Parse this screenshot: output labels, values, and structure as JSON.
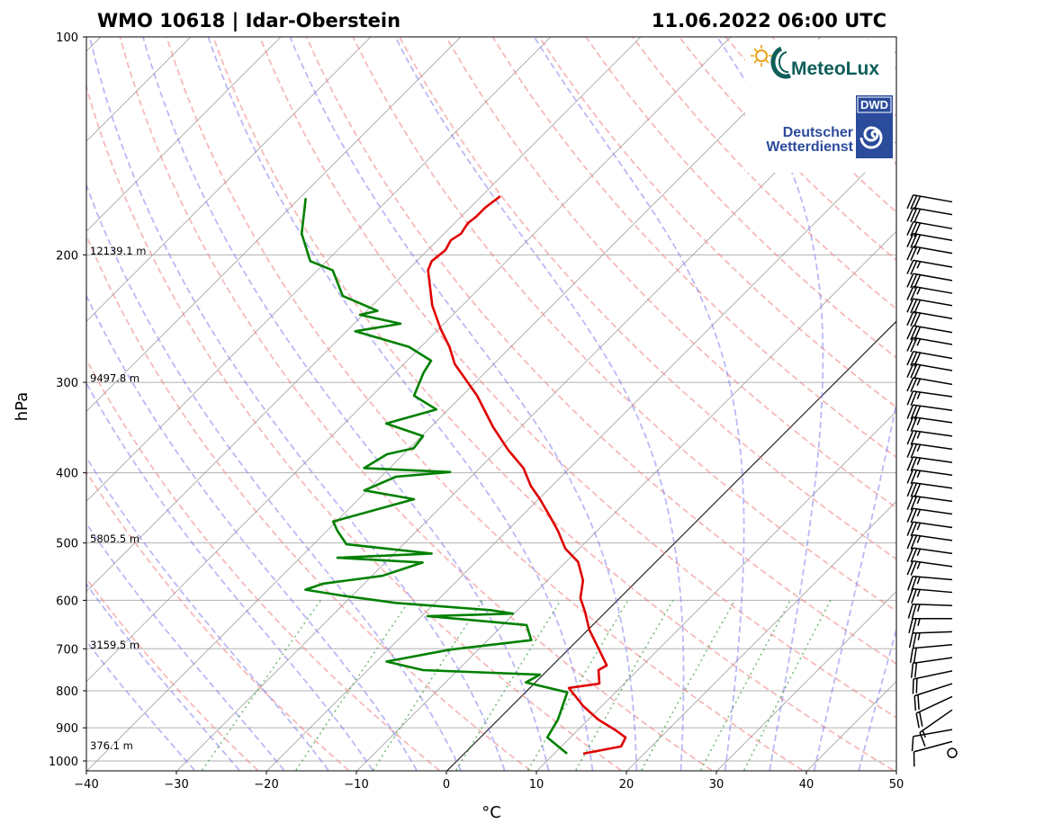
{
  "chart_data": {
    "type": "line",
    "subtype": "skew-t log-p",
    "title_left": "WMO 10618 | Idar-Oberstein",
    "title_right": "11.06.2022 06:00 UTC",
    "xlabel": "°C",
    "ylabel": "hPa",
    "xlim": [
      -40,
      50
    ],
    "ylim": [
      1030,
      100
    ],
    "xticks": [
      -40,
      -30,
      -20,
      -10,
      0,
      10,
      20,
      30,
      40,
      50
    ],
    "xtick_labels": [
      "−40",
      "−30",
      "−20",
      "−10",
      "0",
      "10",
      "20",
      "30",
      "40",
      "50"
    ],
    "yticks": [
      100,
      200,
      300,
      400,
      500,
      600,
      700,
      800,
      900,
      1000
    ],
    "ytick_labels": [
      "100",
      "200",
      "300",
      "400",
      "500",
      "600",
      "700",
      "800",
      "900",
      "1000"
    ],
    "grid": true,
    "height_labels": [
      {
        "p": 200,
        "text": "12139.1 m"
      },
      {
        "p": 300,
        "text": "9497.8 m"
      },
      {
        "p": 500,
        "text": "5805.5 m"
      },
      {
        "p": 700,
        "text": "3159.5 m"
      },
      {
        "p": 965,
        "text": "376.1 m"
      }
    ],
    "series": [
      {
        "name": "temperature",
        "color": "#e00000",
        "p": [
          977,
          955,
          928,
          907,
          877,
          840,
          793,
          782,
          749,
          738,
          698,
          659,
          622,
          596,
          563,
          531,
          509,
          481,
          461,
          435,
          417,
          394,
          372,
          346,
          313,
          283,
          268,
          253,
          235,
          210,
          204,
          197,
          191,
          187,
          181,
          177,
          172,
          166
        ],
        "t": [
          13.3,
          16.7,
          16.2,
          14.3,
          11.2,
          8.0,
          4.4,
          7.3,
          5.7,
          6.1,
          3.2,
          0.2,
          -2.3,
          -4.3,
          -6.0,
          -8.6,
          -11.5,
          -14.3,
          -16.6,
          -19.8,
          -22.3,
          -25.1,
          -28.8,
          -33.0,
          -38.3,
          -44.3,
          -46.8,
          -49.8,
          -53.3,
          -57.7,
          -58.3,
          -58.0,
          -58.5,
          -58.1,
          -58.5,
          -58.3,
          -58.3,
          -57.9
        ]
      },
      {
        "name": "dewpoint",
        "color": "#008000",
        "p": [
          977,
          928,
          877,
          804,
          779,
          760,
          749,
          729,
          702,
          681,
          649,
          631,
          626,
          619,
          605,
          591,
          580,
          569,
          555,
          532,
          524,
          517,
          502,
          481,
          467,
          435,
          423,
          405,
          399,
          394,
          377,
          370,
          356,
          342,
          327,
          313,
          291,
          280,
          268,
          255,
          249,
          242,
          239,
          228,
          210,
          204,
          187,
          167
        ],
        "t": [
          11.5,
          7.5,
          6.7,
          4.7,
          -1.0,
          -0.3,
          -13.8,
          -18.8,
          -13.1,
          -5.1,
          -7.3,
          -19.3,
          -10.1,
          -13.0,
          -24.3,
          -31.1,
          -35.8,
          -34.5,
          -28.8,
          -25.8,
          -35.8,
          -25.8,
          -36.3,
          -38.8,
          -40.3,
          -33.8,
          -40.3,
          -38.3,
          -32.8,
          -42.8,
          -41.8,
          -39.5,
          -39.8,
          -45.3,
          -41.3,
          -45.3,
          -46.8,
          -47.3,
          -51.3,
          -59.0,
          -54.8,
          -60.3,
          -58.8,
          -64.3,
          -68.3,
          -71.8,
          -75.8,
          -79.3
        ]
      }
    ],
    "dry_adiabats_K": [
      250,
      260,
      270,
      280,
      290,
      300,
      310,
      320,
      330,
      340,
      350,
      360,
      370,
      380,
      390,
      400,
      410,
      420,
      430,
      440,
      450,
      460,
      470,
      480,
      490,
      500
    ],
    "moist_adiabats_start_C": [
      -30,
      -25,
      -20,
      -15,
      -10,
      -5,
      0,
      5,
      10,
      15,
      20,
      25,
      30,
      35,
      40,
      45
    ],
    "mixing_ratios_gkg": [
      0.4,
      1,
      2,
      4,
      7,
      10,
      16,
      24,
      32
    ],
    "wind_barbs": {
      "p": [
        169,
        176,
        184,
        191,
        199,
        208,
        217,
        226,
        235,
        245,
        256,
        266,
        278,
        289,
        302,
        314,
        328,
        341,
        356,
        371,
        387,
        403,
        420,
        438,
        456,
        476,
        496,
        517,
        539,
        562,
        585,
        610,
        636,
        663,
        691,
        720,
        751,
        782,
        815,
        850,
        905,
        940,
        975
      ],
      "speed_kt": [
        30,
        30,
        30,
        30,
        25,
        25,
        30,
        25,
        30,
        30,
        30,
        25,
        30,
        30,
        25,
        25,
        30,
        25,
        25,
        25,
        25,
        25,
        30,
        25,
        25,
        25,
        25,
        25,
        25,
        25,
        25,
        25,
        25,
        25,
        20,
        20,
        20,
        20,
        20,
        15,
        10,
        10,
        0
      ],
      "direction_deg": [
        280,
        280,
        280,
        280,
        280,
        280,
        280,
        280,
        280,
        280,
        280,
        280,
        280,
        280,
        280,
        278,
        278,
        278,
        278,
        278,
        278,
        278,
        278,
        278,
        278,
        278,
        278,
        278,
        278,
        275,
        275,
        272,
        270,
        268,
        265,
        262,
        258,
        252,
        245,
        235,
        260,
        255,
        0
      ]
    }
  },
  "logos": {
    "meteolux": "MeteoLux",
    "dwd_badge": "DWD",
    "dwd_line1": "Deutscher",
    "dwd_line2": "Wetterdienst"
  }
}
